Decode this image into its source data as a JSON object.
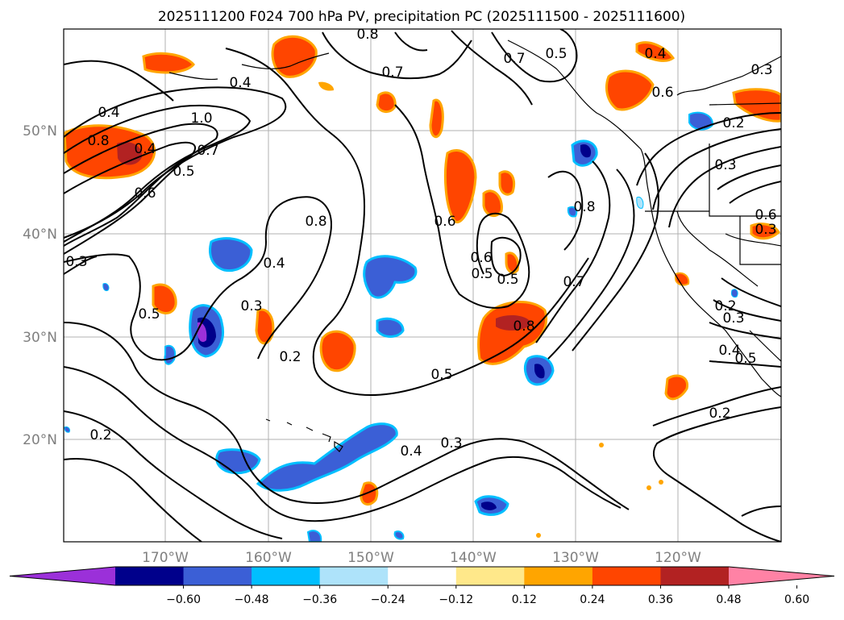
{
  "title": "2025111200 F024 700 hPa PV, precipitation PC (2025111500 - 2025111600)",
  "axes": {
    "lon_labels": [
      "170°W",
      "160°W",
      "150°W",
      "140°W",
      "130°W",
      "120°W"
    ],
    "lat_labels": [
      "20°N",
      "30°N",
      "40°N",
      "50°N"
    ]
  },
  "colorbar": {
    "ticks": [
      "−0.60",
      "−0.48",
      "−0.36",
      "−0.24",
      "−0.12",
      "0.12",
      "0.24",
      "0.36",
      "0.48",
      "0.60"
    ],
    "colors": [
      "#9b30d9",
      "#00008b",
      "#3b5fd6",
      "#00bfff",
      "#aee3fa",
      "#ffffff",
      "#ffe88a",
      "#ffa500",
      "#ff4500",
      "#b22222",
      "#ff82a5"
    ]
  },
  "pv_contour_labels": [
    "1.0",
    "0.8",
    "0.7",
    "0.6",
    "0.5",
    "0.4",
    "0.3",
    "0.2",
    "0.8",
    "0.6",
    "0.5",
    "0.4",
    "0.3",
    "0.2",
    "0.7",
    "0.6",
    "0.5",
    "0.8",
    "0.4",
    "0.3",
    "0.8",
    "0.7",
    "0.5",
    "0.4",
    "0.3",
    "0.2",
    "0.8",
    "0.6",
    "0.5",
    "0.4",
    "0.3",
    "0.2",
    "0.7",
    "0.6",
    "0.5",
    "0.4",
    "0.3",
    "0.2",
    "0.3",
    "0.4",
    "0.5"
  ]
}
